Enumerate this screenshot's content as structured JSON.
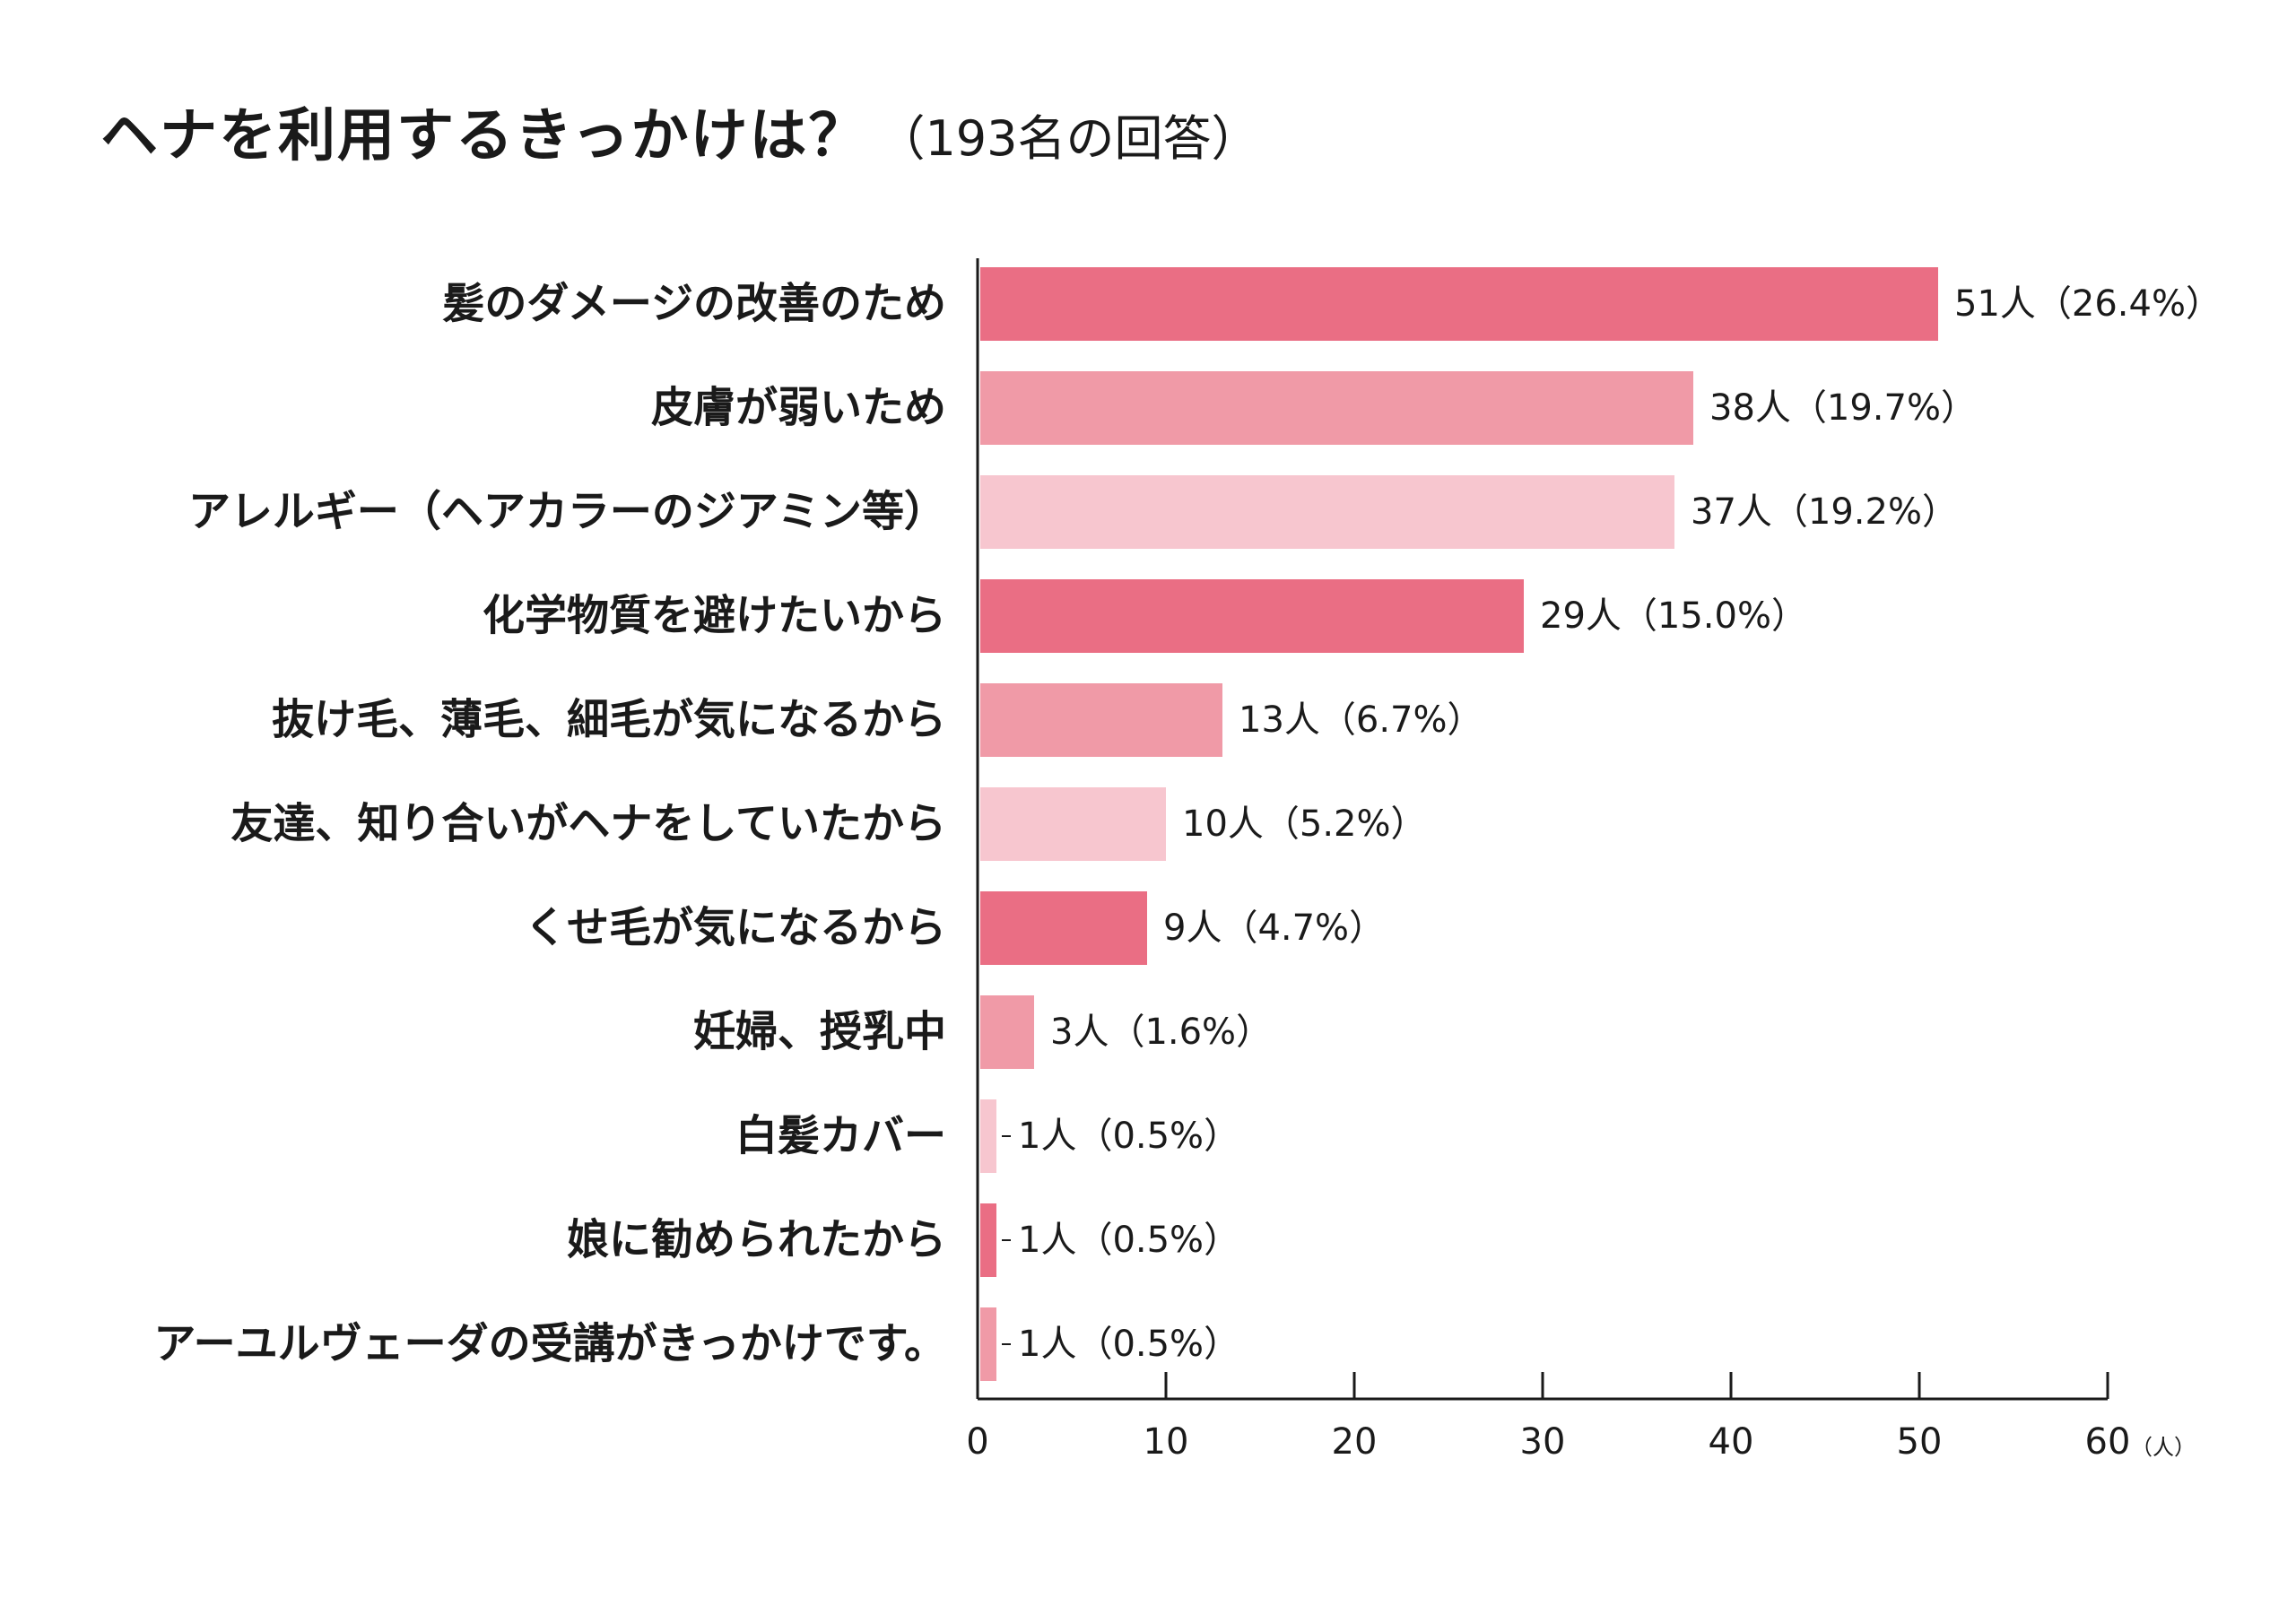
{
  "title": {
    "main": "ヘナを利用するきっかけは？",
    "sub": "（193名の回答）"
  },
  "colors": {
    "dark": "#ea6e84",
    "medium": "#f09aa7",
    "light": "#f7c6cf",
    "axis": "#1a1a1a"
  },
  "chart_data": {
    "type": "bar",
    "orientation": "horizontal",
    "categories": [
      "髪のダメージの改善のため",
      "皮膚が弱いため",
      "アレルギー（ヘアカラーのジアミン等）",
      "化学物質を避けたいから",
      "抜け毛、薄毛、細毛が気になるから",
      "友達、知り合いがヘナをしていたから",
      "くせ毛が気になるから",
      "妊婦、授乳中",
      "白髪カバー",
      "娘に勧められたから",
      "アーユルヴェーダの受講がきっかけです。"
    ],
    "values": [
      51,
      38,
      37,
      29,
      13,
      10,
      9,
      3,
      1,
      1,
      1
    ],
    "value_labels": [
      "51人（26.4%）",
      "38人（19.7%）",
      "37人（19.2%）",
      "29人（15.0%）",
      "13人（6.7%）",
      "10人（5.2%）",
      "9人（4.7%）",
      "3人（1.6%）",
      "1人（0.5%）",
      "1人（0.5%）",
      "1人（0.5%）"
    ],
    "bar_color_cycle": [
      "dark",
      "medium",
      "light"
    ],
    "xlim": [
      0,
      60
    ],
    "xticks": [
      0,
      10,
      20,
      30,
      40,
      50,
      60
    ],
    "xunit": "（人）",
    "grid": false
  }
}
